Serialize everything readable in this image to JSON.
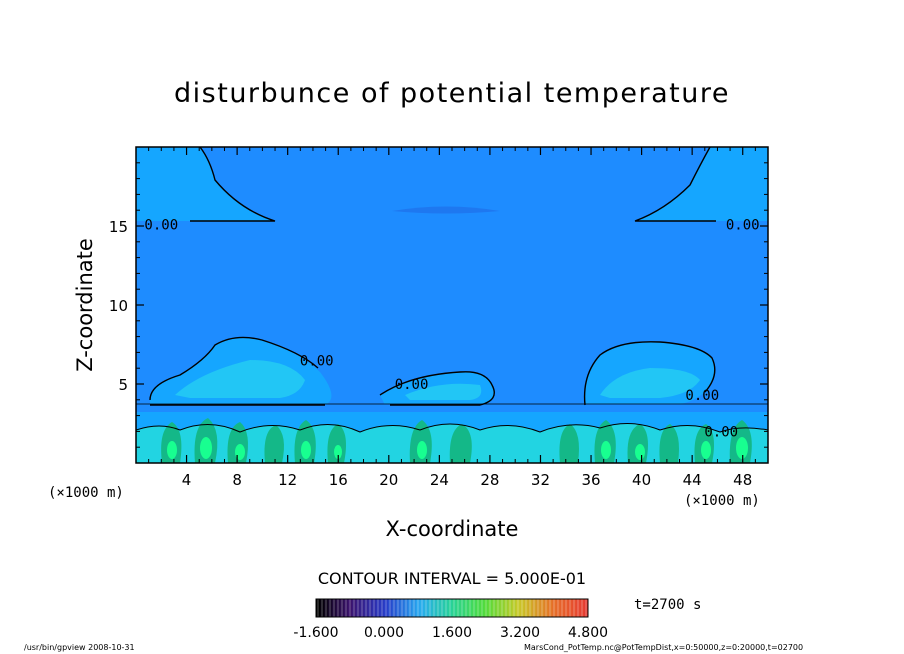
{
  "chart_data": {
    "type": "heatmap",
    "title": "disturbunce of potential temperature",
    "xlabel": "X-coordinate",
    "ylabel": "Z-coordinate",
    "x_unit": "(×1000 m)",
    "z_unit": "(×1000 m)",
    "xlim": [
      0,
      50
    ],
    "ylim": [
      0,
      20
    ],
    "x_ticks": [
      4,
      8,
      12,
      16,
      20,
      24,
      28,
      32,
      36,
      40,
      44,
      48
    ],
    "y_ticks": [
      5,
      10,
      15
    ],
    "contour_labels": [
      {
        "text": "0.00",
        "x": 2.0,
        "z": 15.1
      },
      {
        "text": "0.00",
        "x": 48.0,
        "z": 15.1
      },
      {
        "text": "0.00",
        "x": 14.3,
        "z": 6.5
      },
      {
        "text": "0.00",
        "x": 21.8,
        "z": 5.0
      },
      {
        "text": "0.00",
        "x": 44.8,
        "z": 4.3
      },
      {
        "text": "0.00",
        "x": 46.3,
        "z": 2.0
      }
    ],
    "contour_interval_label": "CONTOUR INTERVAL = 5.000E-01",
    "colorbar_tick_labels": [
      "-1.600",
      "0.000",
      "1.600",
      "3.200",
      "4.800"
    ],
    "colorbar_range": [
      -1.6,
      4.8
    ],
    "colors": {
      "background": "#1e8cff",
      "mid": "#15a6ff",
      "light": "#22c6f5",
      "cyan": "#22d4e2",
      "teal": "#14b888",
      "green": "#18ff90",
      "neg_dark": "#1e78f0"
    }
  },
  "time_label": "t=2700 s",
  "footer_left": "/usr/bin/gpview   2008-10-31",
  "footer_right": "MarsCond_PotTemp.nc@PotTempDist,x=0:50000,z=0:20000,t=02700"
}
